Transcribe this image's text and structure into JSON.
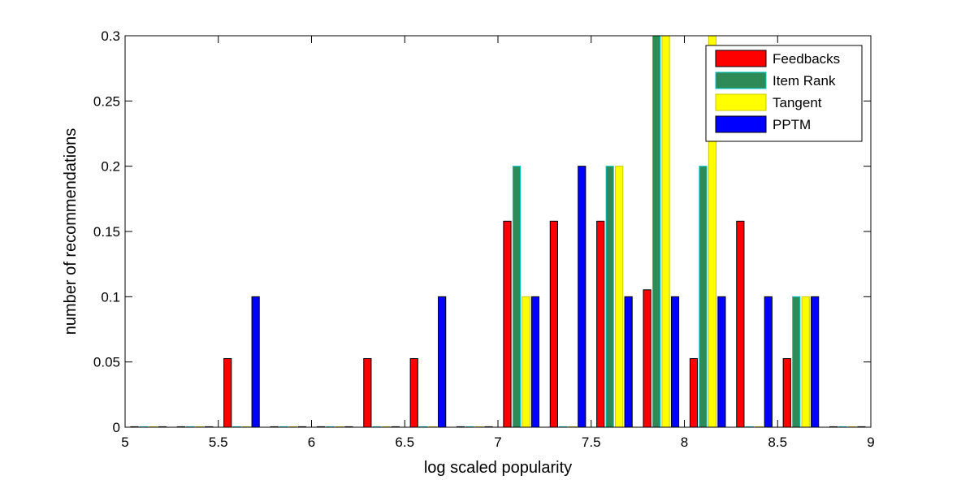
{
  "chart_data": {
    "type": "bar",
    "title": "",
    "xlabel": "log scaled popularity",
    "ylabel": "number of recommendations",
    "xlim": [
      5,
      9
    ],
    "ylim": [
      0,
      0.3
    ],
    "xticks": [
      "5",
      "5.5",
      "6",
      "6.5",
      "7",
      "7.5",
      "8",
      "8.5",
      "9"
    ],
    "yticks": [
      "0",
      "0.05",
      "0.1",
      "0.15",
      "0.2",
      "0.25",
      "0.3"
    ],
    "bin_centers": [
      5.125,
      5.375,
      5.625,
      5.875,
      6.125,
      6.375,
      6.625,
      6.875,
      7.125,
      7.375,
      7.625,
      7.875,
      8.125,
      8.375,
      8.625,
      8.875
    ],
    "legend_position": "top-right",
    "grid": false,
    "series": [
      {
        "name": "Feedbacks",
        "color": "#ff0000",
        "edge": "#000000",
        "values": [
          0,
          0,
          0.0526,
          0,
          0,
          0.0526,
          0.0526,
          0,
          0.1579,
          0.1579,
          0.1579,
          0.1053,
          0.0526,
          0.1579,
          0.0526,
          0
        ]
      },
      {
        "name": "Item Rank",
        "color": "#2e8b57",
        "edge": "#00c8c8",
        "values": [
          0,
          0,
          0,
          0,
          0,
          0,
          0,
          0,
          0.2,
          0,
          0.2,
          0.3,
          0.2,
          0,
          0.1,
          0
        ]
      },
      {
        "name": "Tangent",
        "color": "#ffff00",
        "edge": "#c8c800",
        "values": [
          0,
          0,
          0,
          0,
          0,
          0,
          0,
          0,
          0.1,
          0,
          0.2,
          0.3,
          0.3,
          0,
          0.1,
          0
        ]
      },
      {
        "name": "PPTM",
        "color": "#0000ff",
        "edge": "#000000",
        "values": [
          0,
          0,
          0.1,
          0,
          0,
          0,
          0.1,
          0,
          0.1,
          0.2,
          0.1,
          0.1,
          0.1,
          0.1,
          0.1,
          0
        ]
      }
    ]
  }
}
